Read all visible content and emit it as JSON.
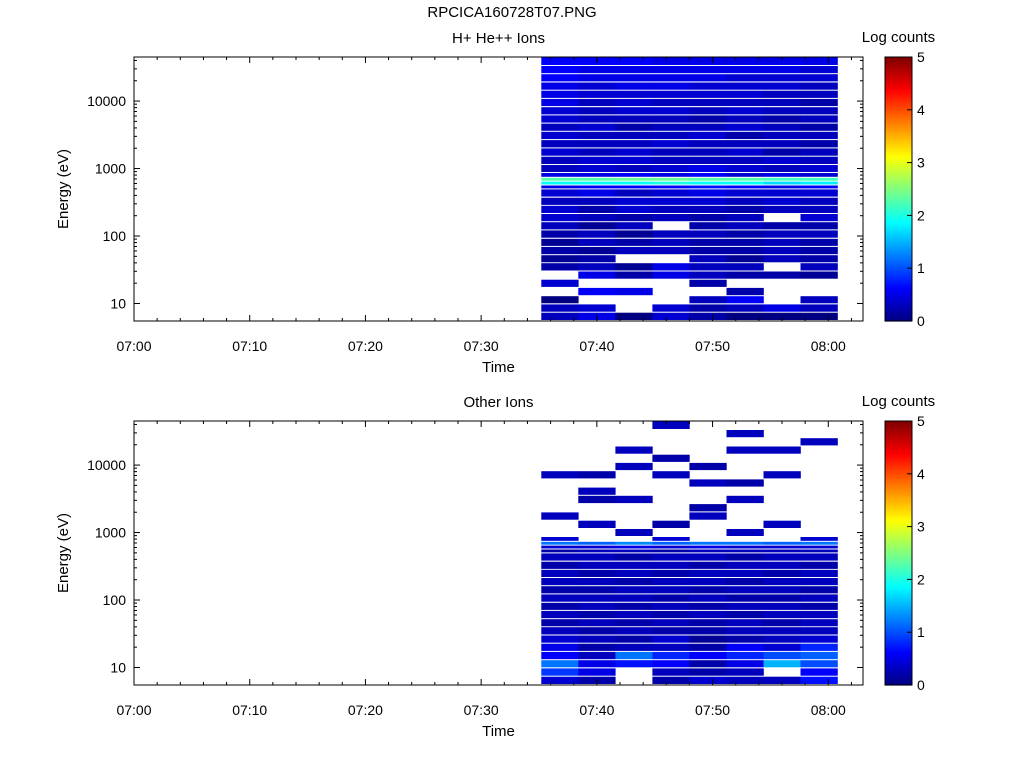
{
  "figure_title": "RPCICA160728T07.PNG",
  "chart_data": [
    {
      "type": "heatmap",
      "title": "H+ He++ Ions",
      "xlabel": "Time",
      "ylabel": "Energy (eV)",
      "x_ticks": [
        "07:00",
        "07:10",
        "07:20",
        "07:30",
        "07:40",
        "07:50",
        "08:00"
      ],
      "x_range_minutes": [
        0,
        63
      ],
      "y_scale": "log",
      "y_ticks": [
        "10",
        "100",
        "1000",
        "10000"
      ],
      "y_range": [
        5.5,
        45000
      ],
      "colorbar": {
        "label": "Log counts",
        "ticks": [
          "0",
          "1",
          "2",
          "3",
          "4",
          "5"
        ],
        "range": [
          0,
          5
        ]
      },
      "time_bins_minutes": [
        35.2,
        38.4,
        41.6,
        44.8,
        48.0,
        51.2,
        54.4,
        57.6,
        60.8
      ],
      "energy_bins_eV": [
        5.5,
        7.3,
        9.7,
        12.8,
        17.0,
        22.5,
        29.8,
        39.5,
        52,
        69,
        91,
        121,
        160,
        212,
        280,
        370,
        490,
        560,
        640,
        730,
        860,
        1130,
        1500,
        1990,
        2640,
        3500,
        4630,
        6130,
        8120,
        10760,
        14250,
        18870,
        25000,
        33100,
        45000
      ],
      "log_counts": [
        [
          0.3,
          0.5,
          0.0,
          0.4,
          0.2,
          0.0,
          0.0,
          0.0
        ],
        [
          0.3,
          0.4,
          null,
          0.4,
          0.2,
          0.3,
          0.5,
          0.3
        ],
        [
          0.0,
          null,
          null,
          null,
          0.3,
          0.6,
          null,
          0.3
        ],
        [
          null,
          0.6,
          0.5,
          null,
          null,
          0.2,
          null,
          null
        ],
        [
          0.4,
          null,
          null,
          null,
          0.2,
          null,
          null,
          null
        ],
        [
          null,
          0.5,
          0.2,
          0.5,
          0.3,
          0.2,
          0.2,
          0.1
        ],
        [
          0.2,
          0.3,
          0.1,
          0.5,
          0.3,
          0.3,
          null,
          0.3
        ],
        [
          0.1,
          0.2,
          null,
          null,
          0.3,
          0.1,
          0.3,
          0.2
        ],
        [
          0.2,
          0.1,
          0.3,
          0.3,
          0.2,
          0.2,
          0.3,
          0.2
        ],
        [
          0.1,
          0.3,
          0.2,
          0.3,
          0.2,
          0.2,
          0.3,
          0.2
        ],
        [
          0.2,
          0.3,
          0.1,
          0.3,
          0.3,
          0.2,
          0.3,
          0.3
        ],
        [
          0.3,
          0.1,
          0.3,
          null,
          0.2,
          0.3,
          0.2,
          0.2
        ],
        [
          0.4,
          0.3,
          0.2,
          0.3,
          0.2,
          0.3,
          null,
          0.4
        ],
        [
          0.4,
          0.2,
          0.4,
          0.3,
          0.3,
          0.2,
          0.3,
          0.3
        ],
        [
          0.3,
          0.3,
          0.4,
          0.4,
          0.4,
          0.3,
          0.4,
          0.3
        ],
        [
          0.4,
          0.5,
          0.3,
          0.4,
          0.5,
          0.4,
          0.4,
          0.4
        ],
        [
          0.5,
          0.6,
          0.6,
          0.6,
          0.7,
          0.6,
          0.5,
          0.6
        ],
        [
          1.9,
          1.9,
          1.9,
          2.0,
          1.9,
          1.9,
          1.7,
          1.8
        ],
        [
          2.3,
          2.3,
          2.4,
          2.4,
          2.3,
          2.3,
          2.2,
          2.2
        ],
        [
          0.5,
          0.5,
          0.6,
          0.5,
          0.6,
          0.4,
          0.5,
          0.4
        ],
        [
          0.3,
          0.4,
          0.3,
          0.4,
          0.5,
          0.4,
          0.3,
          0.4
        ],
        [
          0.3,
          0.4,
          0.4,
          0.3,
          0.3,
          0.3,
          0.4,
          0.3
        ],
        [
          0.4,
          0.3,
          0.4,
          0.3,
          0.3,
          0.4,
          0.2,
          0.3
        ],
        [
          0.3,
          0.3,
          0.3,
          0.4,
          0.3,
          0.3,
          0.3,
          0.2
        ],
        [
          0.4,
          0.3,
          0.3,
          0.3,
          0.4,
          0.2,
          0.3,
          0.3
        ],
        [
          0.3,
          0.4,
          0.2,
          0.3,
          0.3,
          0.4,
          0.3,
          0.2
        ],
        [
          0.4,
          0.3,
          0.3,
          0.3,
          0.2,
          0.3,
          0.2,
          0.3
        ],
        [
          0.4,
          0.3,
          0.4,
          0.4,
          0.3,
          0.4,
          0.3,
          0.3
        ],
        [
          0.5,
          0.3,
          0.4,
          0.3,
          0.3,
          0.3,
          0.3,
          0.2
        ],
        [
          0.5,
          0.4,
          0.4,
          0.4,
          0.4,
          0.4,
          0.3,
          0.3
        ],
        [
          0.5,
          0.4,
          0.5,
          0.5,
          0.4,
          0.4,
          0.4,
          0.3
        ],
        [
          0.6,
          0.5,
          0.5,
          0.5,
          0.5,
          0.4,
          0.4,
          0.4
        ],
        [
          0.6,
          0.5,
          0.5,
          0.5,
          0.5,
          0.5,
          0.5,
          0.4
        ],
        [
          0.6,
          0.6,
          0.6,
          0.5,
          0.5,
          0.5,
          0.5,
          0.5
        ]
      ]
    },
    {
      "type": "heatmap",
      "title": "Other Ions",
      "xlabel": "Time",
      "ylabel": "Energy (eV)",
      "x_ticks": [
        "07:00",
        "07:10",
        "07:20",
        "07:30",
        "07:40",
        "07:50",
        "08:00"
      ],
      "x_range_minutes": [
        0,
        63
      ],
      "y_scale": "log",
      "y_ticks": [
        "10",
        "100",
        "1000",
        "10000"
      ],
      "y_range": [
        5.5,
        45000
      ],
      "colorbar": {
        "label": "Log counts",
        "ticks": [
          "0",
          "1",
          "2",
          "3",
          "4",
          "5"
        ],
        "range": [
          0,
          5
        ]
      },
      "time_bins_minutes": [
        35.2,
        38.4,
        41.6,
        44.8,
        48.0,
        51.2,
        54.4,
        57.6,
        60.8
      ],
      "energy_bins_eV": [
        5.5,
        7.3,
        9.7,
        12.8,
        17.0,
        22.5,
        29.8,
        39.5,
        52,
        69,
        91,
        121,
        160,
        212,
        280,
        370,
        490,
        560,
        640,
        730,
        860,
        1130,
        1500,
        1990,
        2640,
        3500,
        4630,
        6130,
        8120,
        10760,
        14250,
        18870,
        25000,
        33100,
        45000
      ],
      "log_counts": [
        [
          0.4,
          0.2,
          null,
          0.2,
          0.4,
          0.3,
          0.3,
          0.7
        ],
        [
          0.9,
          0.5,
          null,
          0.3,
          0.2,
          0.3,
          null,
          0.6
        ],
        [
          1.2,
          0.5,
          0.7,
          0.6,
          0.2,
          0.5,
          1.5,
          1.0
        ],
        [
          0.6,
          0.3,
          1.2,
          0.8,
          0.6,
          0.8,
          1.0,
          1.1
        ],
        [
          0.5,
          0.2,
          0.3,
          0.3,
          0.2,
          0.6,
          0.4,
          0.8
        ],
        [
          0.4,
          0.3,
          0.2,
          0.4,
          0.1,
          0.2,
          0.3,
          0.4
        ],
        [
          0.3,
          0.2,
          0.3,
          0.2,
          0.2,
          0.3,
          0.3,
          0.3
        ],
        [
          0.2,
          0.3,
          0.2,
          0.3,
          0.2,
          0.3,
          0.2,
          0.3
        ],
        [
          0.3,
          0.2,
          0.3,
          0.2,
          0.3,
          0.2,
          0.3,
          0.3
        ],
        [
          0.2,
          0.3,
          0.2,
          0.3,
          0.2,
          0.3,
          0.3,
          0.2
        ],
        [
          0.3,
          0.3,
          0.3,
          0.2,
          0.3,
          0.2,
          0.2,
          0.3
        ],
        [
          0.2,
          0.2,
          0.3,
          0.3,
          0.2,
          0.3,
          0.3,
          0.2
        ],
        [
          0.3,
          0.3,
          0.2,
          0.3,
          0.3,
          0.2,
          0.3,
          0.3
        ],
        [
          0.3,
          0.2,
          0.3,
          0.2,
          0.3,
          0.3,
          0.2,
          0.3
        ],
        [
          0.2,
          0.3,
          0.3,
          0.3,
          0.2,
          0.3,
          0.3,
          0.2
        ],
        [
          0.3,
          0.3,
          0.2,
          0.3,
          0.3,
          0.2,
          0.3,
          0.3
        ],
        [
          0.2,
          0.3,
          0.3,
          0.2,
          0.3,
          0.3,
          0.3,
          0.3
        ],
        [
          0.4,
          0.4,
          0.5,
          0.4,
          0.5,
          0.4,
          0.4,
          0.4
        ],
        [
          1.2,
          1.1,
          1.3,
          1.1,
          1.2,
          1.2,
          1.1,
          1.2
        ],
        [
          0.4,
          null,
          null,
          0.4,
          null,
          null,
          null,
          0.4
        ],
        [
          null,
          null,
          0.3,
          null,
          null,
          0.3,
          null,
          null
        ],
        [
          null,
          0.3,
          null,
          0.2,
          null,
          null,
          0.3,
          null
        ],
        [
          0.3,
          null,
          null,
          null,
          0.3,
          null,
          null,
          null
        ],
        [
          null,
          null,
          null,
          null,
          0.2,
          null,
          null,
          null
        ],
        [
          null,
          0.2,
          0.3,
          null,
          null,
          0.3,
          null,
          null
        ],
        [
          null,
          0.3,
          null,
          null,
          null,
          null,
          null,
          null
        ],
        [
          null,
          null,
          null,
          null,
          0.3,
          0.2,
          null,
          null
        ],
        [
          0.3,
          0.2,
          null,
          0.3,
          null,
          null,
          0.3,
          null
        ],
        [
          null,
          null,
          0.3,
          null,
          0.2,
          null,
          null,
          null
        ],
        [
          null,
          null,
          null,
          0.2,
          null,
          null,
          null,
          null
        ],
        [
          null,
          null,
          0.3,
          null,
          null,
          0.3,
          0.3,
          null
        ],
        [
          null,
          null,
          null,
          null,
          null,
          null,
          null,
          0.3
        ],
        [
          null,
          null,
          null,
          null,
          null,
          0.3,
          null,
          null
        ],
        [
          null,
          null,
          null,
          0.3,
          null,
          null,
          null,
          null
        ]
      ]
    }
  ]
}
